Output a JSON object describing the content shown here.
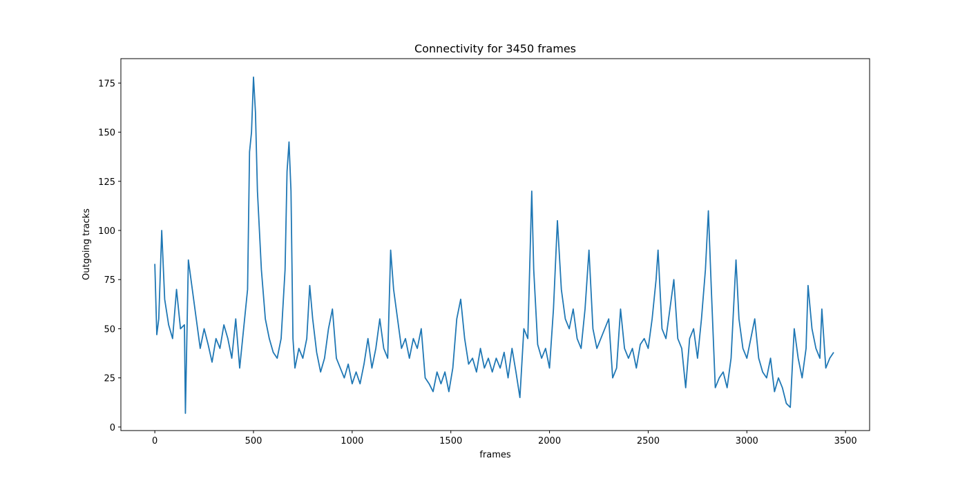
{
  "chart_data": {
    "type": "line",
    "title": "Connectivity for 3450 frames",
    "xlabel": "frames",
    "ylabel": "Outgoing tracks",
    "color": "#1f77b4",
    "x": [
      0,
      10,
      20,
      35,
      50,
      70,
      90,
      110,
      130,
      150,
      155,
      170,
      190,
      210,
      230,
      250,
      270,
      290,
      310,
      330,
      350,
      370,
      390,
      410,
      430,
      450,
      470,
      480,
      490,
      500,
      510,
      520,
      530,
      540,
      560,
      580,
      600,
      620,
      640,
      660,
      670,
      680,
      690,
      700,
      710,
      730,
      750,
      770,
      785,
      800,
      820,
      840,
      860,
      880,
      900,
      920,
      940,
      960,
      980,
      1000,
      1020,
      1040,
      1060,
      1080,
      1100,
      1120,
      1140,
      1160,
      1180,
      1195,
      1210,
      1230,
      1250,
      1270,
      1290,
      1310,
      1330,
      1350,
      1370,
      1390,
      1410,
      1430,
      1450,
      1470,
      1490,
      1510,
      1530,
      1550,
      1570,
      1590,
      1610,
      1630,
      1650,
      1670,
      1690,
      1710,
      1730,
      1750,
      1770,
      1790,
      1810,
      1830,
      1850,
      1870,
      1890,
      1910,
      1920,
      1940,
      1960,
      1980,
      2000,
      2020,
      2040,
      2060,
      2080,
      2100,
      2120,
      2140,
      2160,
      2180,
      2200,
      2220,
      2240,
      2260,
      2280,
      2300,
      2320,
      2340,
      2360,
      2380,
      2400,
      2420,
      2440,
      2460,
      2480,
      2500,
      2520,
      2540,
      2550,
      2570,
      2590,
      2610,
      2630,
      2650,
      2670,
      2690,
      2710,
      2730,
      2750,
      2770,
      2790,
      2805,
      2820,
      2840,
      2860,
      2880,
      2900,
      2920,
      2945,
      2960,
      2980,
      3000,
      3020,
      3040,
      3060,
      3080,
      3100,
      3120,
      3140,
      3160,
      3180,
      3200,
      3220,
      3240,
      3260,
      3280,
      3300,
      3310,
      3330,
      3350,
      3370,
      3380,
      3400,
      3420,
      3440
    ],
    "values": [
      83,
      47,
      55,
      100,
      65,
      52,
      45,
      70,
      50,
      52,
      7,
      85,
      70,
      55,
      40,
      50,
      42,
      33,
      45,
      40,
      52,
      45,
      35,
      55,
      30,
      50,
      70,
      140,
      150,
      178,
      160,
      120,
      100,
      80,
      55,
      45,
      38,
      35,
      45,
      80,
      130,
      145,
      120,
      45,
      30,
      40,
      35,
      45,
      72,
      55,
      38,
      28,
      35,
      50,
      60,
      35,
      30,
      25,
      32,
      22,
      28,
      22,
      32,
      45,
      30,
      40,
      55,
      40,
      35,
      90,
      70,
      55,
      40,
      45,
      35,
      45,
      40,
      50,
      25,
      22,
      18,
      28,
      22,
      28,
      18,
      30,
      55,
      65,
      45,
      32,
      35,
      28,
      40,
      30,
      35,
      28,
      35,
      30,
      38,
      25,
      40,
      28,
      15,
      50,
      45,
      120,
      80,
      42,
      35,
      40,
      30,
      60,
      105,
      70,
      55,
      50,
      60,
      45,
      40,
      60,
      90,
      50,
      40,
      45,
      50,
      55,
      25,
      30,
      60,
      40,
      35,
      40,
      30,
      42,
      45,
      40,
      55,
      75,
      90,
      50,
      45,
      60,
      75,
      45,
      40,
      20,
      45,
      50,
      35,
      55,
      80,
      110,
      70,
      20,
      25,
      28,
      20,
      35,
      85,
      55,
      40,
      35,
      45,
      55,
      35,
      28,
      25,
      35,
      18,
      25,
      20,
      12,
      10,
      50,
      35,
      25,
      40,
      72,
      50,
      40,
      35,
      60,
      30,
      35,
      38
    ],
    "xlim": [
      -172,
      3622
    ],
    "xticks": [
      0,
      500,
      1000,
      1500,
      2000,
      2500,
      3000,
      3500
    ],
    "ylim": [
      -1.8,
      187.4
    ],
    "yticks": [
      0,
      25,
      50,
      75,
      100,
      125,
      150,
      175
    ]
  }
}
